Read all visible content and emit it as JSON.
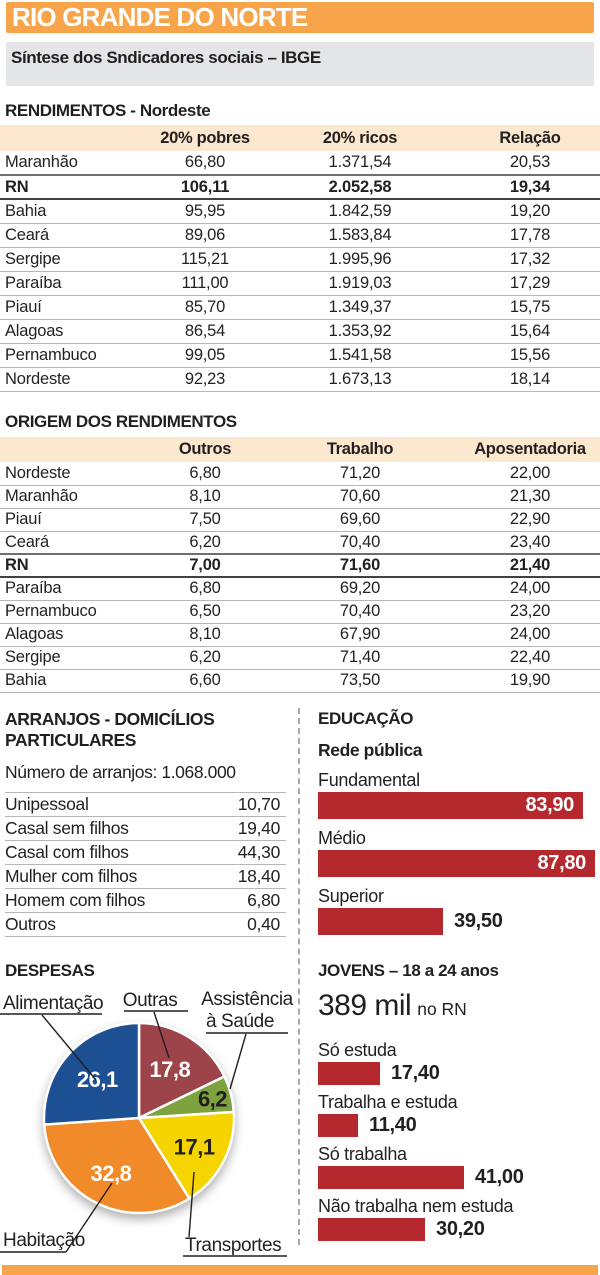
{
  "header": {
    "title": "RIO GRANDE DO NORTE",
    "subtitle": "Síntese dos Sndicadores sociais – IBGE"
  },
  "colors": {
    "accent_orange": "#f7a44a",
    "subtitle_bg": "#e4e5e7",
    "table_header_bg": "#fce8cf",
    "bar_red": "#b5292e"
  },
  "chart_data": [
    {
      "type": "table",
      "title": "RENDIMENTOS - Nordeste",
      "columns": [
        "20% pobres",
        "20% ricos",
        "Relação"
      ],
      "bold_row": 1,
      "rows": [
        [
          "Maranhão",
          "66,80",
          "1.371,54",
          "20,53"
        ],
        [
          "RN",
          "106,11",
          "2.052,58",
          "19,34"
        ],
        [
          "Bahia",
          "95,95",
          "1.842,59",
          "19,20"
        ],
        [
          "Ceará",
          "89,06",
          "1.583,84",
          "17,78"
        ],
        [
          "Sergipe",
          "115,21",
          "1.995,96",
          "17,32"
        ],
        [
          "Paraíba",
          "111,00",
          "1.919,03",
          "17,29"
        ],
        [
          "Piauí",
          "85,70",
          "1.349,37",
          "15,75"
        ],
        [
          "Alagoas",
          "86,54",
          "1.353,92",
          "15,64"
        ],
        [
          "Pernambuco",
          "99,05",
          "1.541,58",
          "15,56"
        ],
        [
          "Nordeste",
          "92,23",
          "1.673,13",
          "18,14"
        ]
      ]
    },
    {
      "type": "table",
      "title": "ORIGEM DOS RENDIMENTOS",
      "columns": [
        "Outros",
        "Trabalho",
        "Aposentadoria"
      ],
      "bold_row": 4,
      "rows": [
        [
          "Nordeste",
          "6,80",
          "71,20",
          "22,00"
        ],
        [
          "Maranhão",
          "8,10",
          "70,60",
          "21,30"
        ],
        [
          "Piauí",
          "7,50",
          "69,60",
          "22,90"
        ],
        [
          "Ceará",
          "6,20",
          "70,40",
          "23,40"
        ],
        [
          "RN",
          "7,00",
          "71,60",
          "21,40"
        ],
        [
          "Paraíba",
          "6,80",
          "69,20",
          "24,00"
        ],
        [
          "Pernambuco",
          "6,50",
          "70,40",
          "23,20"
        ],
        [
          "Alagoas",
          "8,10",
          "67,90",
          "24,00"
        ],
        [
          "Sergipe",
          "6,20",
          "71,40",
          "22,40"
        ],
        [
          "Bahia",
          "6,60",
          "73,50",
          "19,90"
        ]
      ]
    },
    {
      "type": "table",
      "title_line1": "ARRANJOS - DOMICÍLIOS",
      "title_line2": "PARTICULARES",
      "note": "Número de arranjos: 1.068.000",
      "rows": [
        [
          "Unipessoal",
          "10,70"
        ],
        [
          "Casal sem filhos",
          "19,40"
        ],
        [
          "Casal com filhos",
          "44,30"
        ],
        [
          "Mulher com filhos",
          "18,40"
        ],
        [
          "Homem com filhos",
          "6,80"
        ],
        [
          "Outros",
          "0,40"
        ]
      ]
    },
    {
      "type": "bar",
      "title": "EDUCAÇÃO",
      "subtitle": "Rede pública",
      "orientation": "horizontal",
      "bar_color": "#b5292e",
      "categories": [
        "Fundamental",
        "Médio",
        "Superior"
      ],
      "values": [
        83.9,
        87.8,
        39.5
      ],
      "value_labels": [
        "83,90",
        "87,80",
        "39,50"
      ],
      "value_inside": [
        true,
        true,
        false
      ],
      "xlim": [
        0,
        100
      ]
    },
    {
      "type": "pie",
      "title": "DESPESAS",
      "labels": [
        "Outras",
        "Assistência à Saúde",
        "Transportes",
        "Habitação",
        "Alimentação"
      ],
      "values": [
        17.8,
        6.2,
        17.1,
        32.8,
        26.1
      ],
      "value_labels": [
        "17,8",
        "6,2",
        "17,1",
        "32,8",
        "26,1"
      ],
      "colors": [
        "#9c4449",
        "#7da23e",
        "#f5d400",
        "#f18a29",
        "#1d5092"
      ],
      "label_colors": [
        "#ffffff",
        "#231f20",
        "#231f20",
        "#ffffff",
        "#ffffff"
      ],
      "label_radius": [
        58,
        76,
        62,
        62,
        57
      ],
      "start_angle_deg": -90,
      "callout_lines": {
        "alimentacao": "Alimentação",
        "outras": "Outras",
        "assistencia_1": "Assistência",
        "assistencia_2": "à Saúde",
        "habitacao": "Habitação",
        "transportes": "Transportes"
      }
    },
    {
      "type": "bar",
      "title": "JOVENS – 18 a 24 anos",
      "big_number": "389 mil",
      "big_suffix": "no RN",
      "orientation": "horizontal",
      "bar_color": "#b5292e",
      "categories": [
        "Só estuda",
        "Trabalha e estuda",
        "Só trabalha",
        "Não trabalha nem estuda"
      ],
      "values": [
        17.4,
        11.4,
        41.0,
        30.2
      ],
      "value_labels": [
        "17,40",
        "11,40",
        "41,00",
        "30,20"
      ],
      "value_inside": [
        false,
        false,
        false,
        false
      ],
      "xlim": [
        0,
        100
      ]
    }
  ]
}
